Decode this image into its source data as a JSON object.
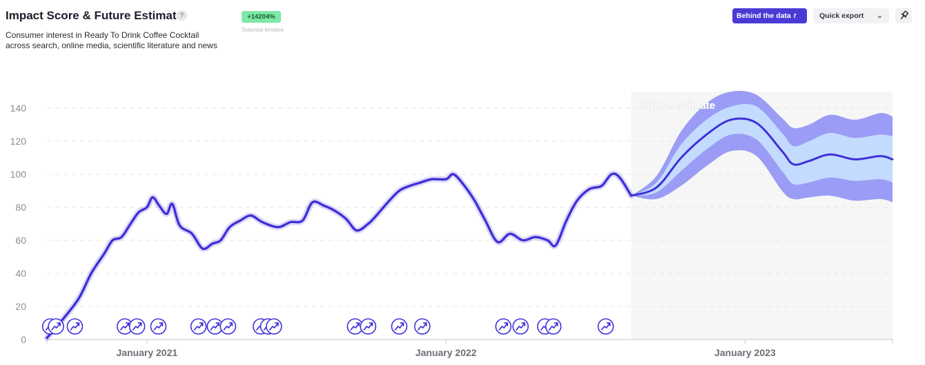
{
  "header": {
    "title": "Impact Score & Future Estimate",
    "help_icon": "?",
    "subtitle_line1": "Consumer interest in Ready To Drink Coffee Cocktail",
    "subtitle_line2": "across search, online media, scientific literature and news",
    "growth_badge": "+14204%",
    "growth_badge_caption": "Selected timeline"
  },
  "toolbar": {
    "behind_data_label": "Behind the data",
    "behind_data_icon": "f",
    "quick_export_label": "Quick export",
    "pin_icon": "pin-icon"
  },
  "colors": {
    "line": "#3f2fd8",
    "outer_band": "#9b9cf5",
    "inner_band": "#c3dbff",
    "forecast_bg": "#f6f6f7",
    "primary_button": "#4b3ad6",
    "badge": "#7ee8a6"
  },
  "chart_data": {
    "type": "line",
    "ylim": [
      0,
      150
    ],
    "yticks": [
      0,
      20,
      40,
      60,
      80,
      100,
      120,
      140
    ],
    "xticks": [
      {
        "label": "January 2021",
        "date": "2021-01-01"
      },
      {
        "label": "January 2022",
        "date": "2022-01-01"
      },
      {
        "label": "January 2023",
        "date": "2023-01-01"
      }
    ],
    "x_start": "2020-09-01",
    "x_end": "2023-06-30",
    "grid": "horizontal-dashed",
    "forecast_label": "Future estimate",
    "forecast_start": "2022-08-15",
    "series": [
      {
        "type": "history",
        "points": [
          [
            "2020-09-01",
            1
          ],
          [
            "2020-09-20",
            12
          ],
          [
            "2020-10-10",
            25
          ],
          [
            "2020-10-25",
            40
          ],
          [
            "2020-11-10",
            52
          ],
          [
            "2020-11-20",
            60
          ],
          [
            "2020-12-01",
            62
          ],
          [
            "2020-12-12",
            70
          ],
          [
            "2020-12-22",
            77
          ],
          [
            "2021-01-01",
            80
          ],
          [
            "2021-01-08",
            86
          ],
          [
            "2021-01-16",
            81
          ],
          [
            "2021-01-25",
            76
          ],
          [
            "2021-02-01",
            82
          ],
          [
            "2021-02-10",
            69
          ],
          [
            "2021-02-25",
            64
          ],
          [
            "2021-03-10",
            55
          ],
          [
            "2021-03-22",
            58
          ],
          [
            "2021-04-01",
            60
          ],
          [
            "2021-04-12",
            68
          ],
          [
            "2021-04-25",
            72
          ],
          [
            "2021-05-08",
            75
          ],
          [
            "2021-05-22",
            71
          ],
          [
            "2021-06-10",
            68
          ],
          [
            "2021-06-25",
            71
          ],
          [
            "2021-07-10",
            72
          ],
          [
            "2021-07-22",
            83
          ],
          [
            "2021-08-05",
            81
          ],
          [
            "2021-08-18",
            78
          ],
          [
            "2021-09-01",
            73
          ],
          [
            "2021-09-14",
            66
          ],
          [
            "2021-09-28",
            70
          ],
          [
            "2021-10-08",
            75
          ],
          [
            "2021-10-22",
            83
          ],
          [
            "2021-11-05",
            90
          ],
          [
            "2021-11-18",
            93
          ],
          [
            "2021-12-01",
            95
          ],
          [
            "2021-12-15",
            97
          ],
          [
            "2022-01-01",
            97
          ],
          [
            "2022-01-10",
            100
          ],
          [
            "2022-01-22",
            94
          ],
          [
            "2022-02-05",
            84
          ],
          [
            "2022-02-18",
            72
          ],
          [
            "2022-03-05",
            59
          ],
          [
            "2022-03-20",
            64
          ],
          [
            "2022-04-05",
            60
          ],
          [
            "2022-04-20",
            62
          ],
          [
            "2022-05-05",
            60
          ],
          [
            "2022-05-15",
            57
          ],
          [
            "2022-05-28",
            72
          ],
          [
            "2022-06-10",
            84
          ],
          [
            "2022-06-25",
            91
          ],
          [
            "2022-07-10",
            93
          ],
          [
            "2022-07-22",
            100
          ],
          [
            "2022-08-01",
            98
          ],
          [
            "2022-08-15",
            87
          ]
        ]
      },
      {
        "type": "forecast",
        "points": [
          [
            "2022-08-15",
            87
          ],
          [
            "2022-09-15",
            92
          ],
          [
            "2022-10-15",
            110
          ],
          [
            "2022-11-15",
            124
          ],
          [
            "2022-12-15",
            133
          ],
          [
            "2023-01-15",
            131
          ],
          [
            "2023-02-15",
            114
          ],
          [
            "2023-03-01",
            106
          ],
          [
            "2023-03-20",
            108
          ],
          [
            "2023-04-15",
            112
          ],
          [
            "2023-05-15",
            109
          ],
          [
            "2023-06-15",
            111
          ],
          [
            "2023-06-30",
            109
          ]
        ]
      },
      {
        "type": "forecast-inner-band",
        "points": [
          [
            "2022-08-15",
            87,
            87
          ],
          [
            "2022-09-15",
            89,
            95
          ],
          [
            "2022-10-15",
            102,
            118
          ],
          [
            "2022-11-15",
            115,
            133
          ],
          [
            "2022-12-15",
            124,
            141
          ],
          [
            "2023-01-15",
            121,
            141
          ],
          [
            "2023-02-15",
            102,
            125
          ],
          [
            "2023-03-01",
            94,
            117
          ],
          [
            "2023-03-20",
            95,
            120
          ],
          [
            "2023-04-15",
            98,
            125
          ],
          [
            "2023-05-15",
            96,
            122
          ],
          [
            "2023-06-15",
            97,
            124
          ],
          [
            "2023-06-30",
            95,
            123
          ]
        ]
      },
      {
        "type": "forecast-outer-band",
        "points": [
          [
            "2022-08-15",
            87,
            87
          ],
          [
            "2022-09-15",
            85,
            99
          ],
          [
            "2022-10-15",
            93,
            126
          ],
          [
            "2022-11-15",
            105,
            143
          ],
          [
            "2022-12-15",
            114,
            150
          ],
          [
            "2023-01-15",
            111,
            148
          ],
          [
            "2023-02-15",
            90,
            134
          ],
          [
            "2023-03-01",
            85,
            128
          ],
          [
            "2023-03-20",
            86,
            130
          ],
          [
            "2023-04-15",
            87,
            136
          ],
          [
            "2023-05-15",
            84,
            133
          ],
          [
            "2023-06-15",
            85,
            137
          ],
          [
            "2023-06-30",
            83,
            135
          ]
        ]
      }
    ],
    "event_markers": [
      "2020-09-05",
      "2020-09-12",
      "2020-10-05",
      "2020-12-05",
      "2020-12-20",
      "2021-01-15",
      "2021-03-05",
      "2021-03-25",
      "2021-04-10",
      "2021-05-20",
      "2021-05-29",
      "2021-06-05",
      "2021-09-12",
      "2021-09-28",
      "2021-11-05",
      "2021-12-03",
      "2022-03-12",
      "2022-04-02",
      "2022-05-02",
      "2022-05-12",
      "2022-07-15"
    ]
  }
}
